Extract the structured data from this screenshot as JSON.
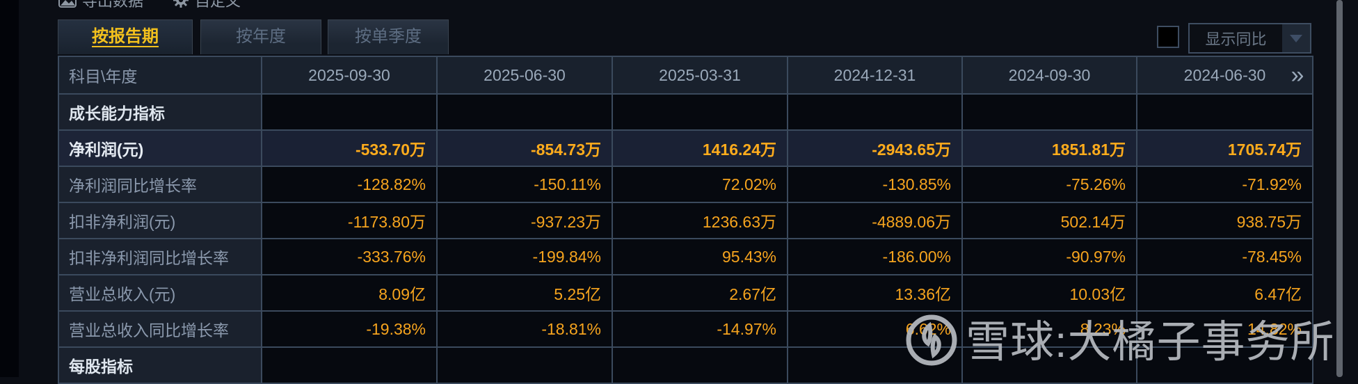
{
  "toolbar": {
    "export_label": "导出数据",
    "customize_label": "自定义"
  },
  "tabs": [
    {
      "label": "按报告期",
      "active": true
    },
    {
      "label": "按年度",
      "active": false
    },
    {
      "label": "按单季度",
      "active": false
    }
  ],
  "controls": {
    "yoy_checkbox_checked": false,
    "yoy_dropdown_label": "显示同比"
  },
  "table": {
    "corner_header": "科目\\年度",
    "period_headers": [
      "2025-09-30",
      "2025-06-30",
      "2025-03-31",
      "2024-12-31",
      "2024-09-30",
      "2024-06-30"
    ],
    "more_periods_icon": "»",
    "rows": [
      {
        "type": "section",
        "label": "成长能力指标",
        "values": [
          "",
          "",
          "",
          "",
          "",
          ""
        ]
      },
      {
        "type": "data",
        "label": "净利润(元)",
        "highlight": true,
        "values": [
          "-533.70万",
          "-854.73万",
          "1416.24万",
          "-2943.65万",
          "1851.81万",
          "1705.74万"
        ]
      },
      {
        "type": "data",
        "label": "净利润同比增长率",
        "values": [
          "-128.82%",
          "-150.11%",
          "72.02%",
          "-130.85%",
          "-75.26%",
          "-71.92%"
        ]
      },
      {
        "type": "data",
        "label": "扣非净利润(元)",
        "values": [
          "-1173.80万",
          "-937.23万",
          "1236.63万",
          "-4889.06万",
          "502.14万",
          "938.75万"
        ]
      },
      {
        "type": "data",
        "label": "扣非净利润同比增长率",
        "values": [
          "-333.76%",
          "-199.84%",
          "95.43%",
          "-186.00%",
          "-90.97%",
          "-78.45%"
        ]
      },
      {
        "type": "data",
        "label": "营业总收入(元)",
        "values": [
          "8.09亿",
          "5.25亿",
          "2.67亿",
          "13.36亿",
          "10.03亿",
          "6.47亿"
        ]
      },
      {
        "type": "data",
        "label": "营业总收入同比增长率",
        "values": [
          "-19.38%",
          "-18.81%",
          "-14.97%",
          "6.62%",
          "8.23%",
          "14.82%"
        ]
      },
      {
        "type": "section",
        "label": "每股指标",
        "values": [
          "",
          "",
          "",
          "",
          "",
          ""
        ]
      }
    ]
  },
  "watermark": {
    "text": "雪球:大橘子事务所"
  },
  "colors": {
    "value_orange": "#f6a41e",
    "value_orange_bold": "#ffac1c",
    "highlight_row_bg": "#1a2134",
    "label_cell_bg": "#1a212d",
    "data_cell_bg": "#06090f",
    "border": "#3b4a5d",
    "active_tab_yellow": "#f3c11d",
    "watermark_grey": "#b4b8be"
  }
}
